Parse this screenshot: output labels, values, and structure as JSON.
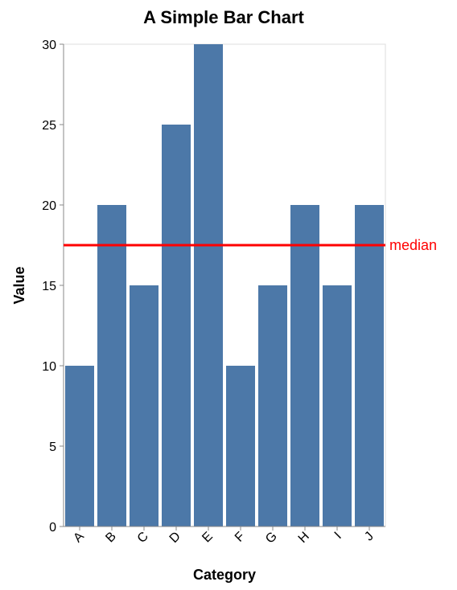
{
  "chart_data": {
    "type": "bar",
    "title": "A Simple Bar Chart",
    "xlabel": "Category",
    "ylabel": "Value",
    "categories": [
      "A",
      "B",
      "C",
      "D",
      "E",
      "F",
      "G",
      "H",
      "I",
      "J"
    ],
    "values": [
      10,
      20,
      15,
      25,
      30,
      10,
      15,
      20,
      15,
      20
    ],
    "ylim": [
      0,
      30
    ],
    "yticks": [
      0,
      5,
      10,
      15,
      20,
      25,
      30
    ],
    "grid": false,
    "bar_color": "#4c78a8",
    "reference_line": {
      "label": "median",
      "value": 17.5,
      "color": "#ff0000"
    }
  }
}
